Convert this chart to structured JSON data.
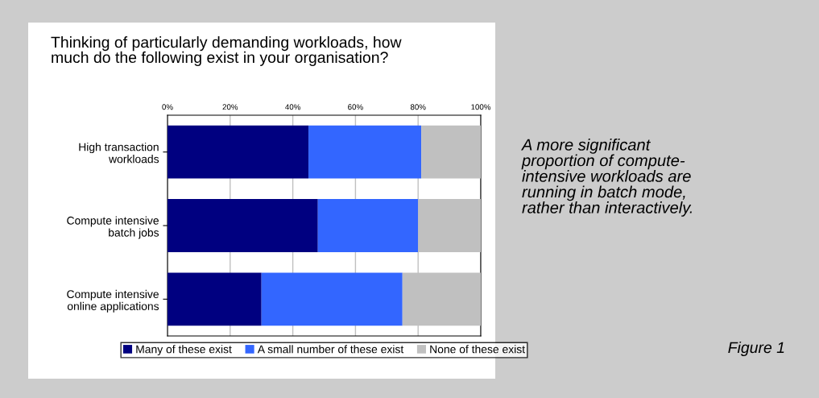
{
  "chart_data": {
    "type": "bar",
    "orientation": "horizontal",
    "stacked": true,
    "title": "Thinking of particularly demanding workloads, how\nmuch do the following exist in your organisation?",
    "categories": [
      "High transaction\nworkloads",
      "Compute intensive\nbatch jobs",
      "Compute intensive\nonline applications"
    ],
    "series": [
      {
        "name": "Many of these exist",
        "color": "#000080",
        "values": [
          45,
          48,
          30
        ]
      },
      {
        "name": "A small number of these exist",
        "color": "#3366ff",
        "values": [
          36,
          32,
          45
        ]
      },
      {
        "name": "None of these exist",
        "color": "#c0c0c0",
        "values": [
          19,
          20,
          25
        ]
      }
    ],
    "xlim": [
      0,
      100
    ],
    "xticks": [
      {
        "value": 0,
        "label": "0%"
      },
      {
        "value": 20,
        "label": "20%"
      },
      {
        "value": 40,
        "label": "40%"
      },
      {
        "value": 60,
        "label": "60%"
      },
      {
        "value": 80,
        "label": "80%"
      },
      {
        "value": 100,
        "label": "100%"
      }
    ],
    "grid": "x",
    "legend": "bottom",
    "annotations": [
      "A more significant\nproportion of compute-\nintensive workloads are\nrunning in batch mode,\nrather than interactively.",
      "Figure 1"
    ]
  }
}
